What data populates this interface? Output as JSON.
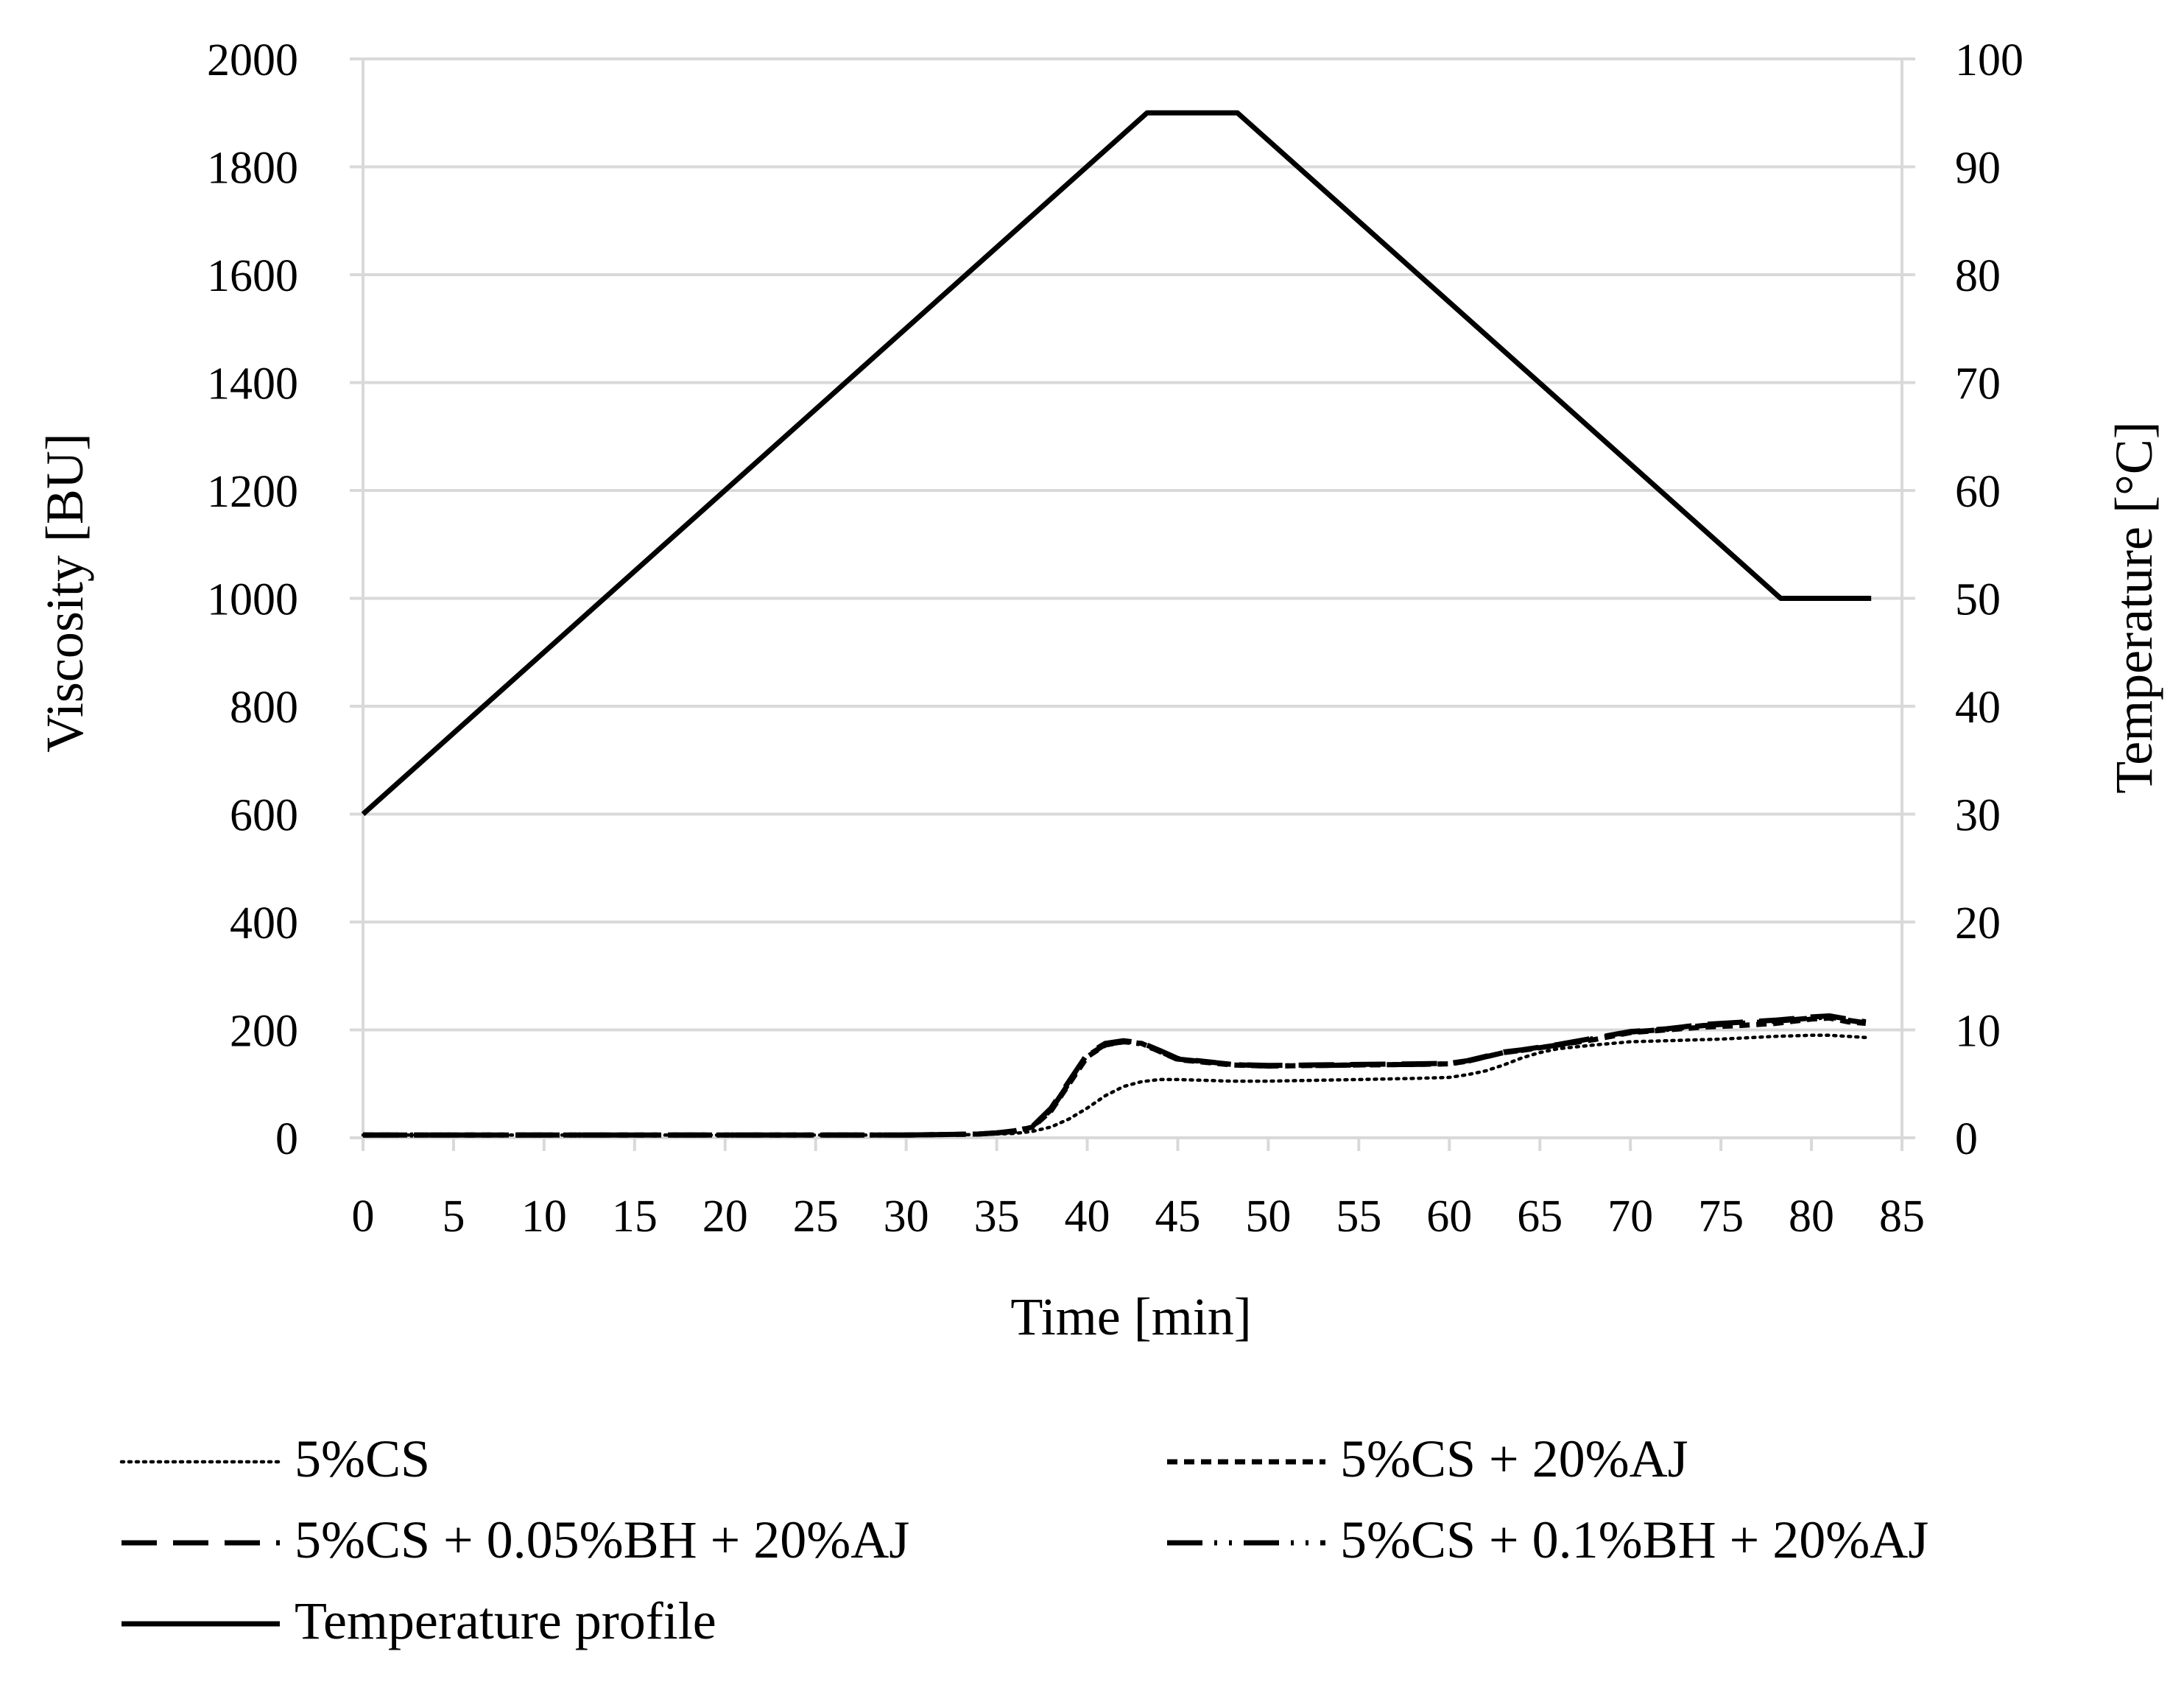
{
  "chart_data": {
    "type": "line",
    "title": "",
    "xlabel": "Time [min]",
    "ylabel": "Viscosity [BU]",
    "y2label": "Temperature [°C]",
    "xlim": [
      0,
      85
    ],
    "ylim": [
      0,
      2000
    ],
    "y2lim": [
      0,
      100
    ],
    "x_ticks": [
      "0",
      "5",
      "10",
      "15",
      "20",
      "25",
      "30",
      "35",
      "40",
      "45",
      "50",
      "55",
      "60",
      "65",
      "70",
      "75",
      "80",
      "85"
    ],
    "y_ticks": [
      "0",
      "200",
      "400",
      "600",
      "800",
      "1000",
      "1200",
      "1400",
      "1600",
      "1800",
      "2000"
    ],
    "y2_ticks": [
      "0",
      "10",
      "20",
      "30",
      "40",
      "50",
      "60",
      "70",
      "80",
      "90",
      "100"
    ],
    "grid": true,
    "legend_position": "bottom",
    "series": [
      {
        "name": "5%CS",
        "axis": "left",
        "style": "dotted",
        "x": [
          0,
          10,
          20,
          30,
          34,
          36,
          37,
          38,
          39,
          40,
          41,
          42,
          43,
          44,
          45,
          48,
          50,
          55,
          58,
          60,
          61,
          62,
          63,
          64,
          65,
          66,
          68,
          70,
          72,
          75,
          78,
          80,
          81,
          82,
          83
        ],
        "values": [
          5,
          5,
          5,
          5,
          6,
          8,
          12,
          20,
          35,
          55,
          78,
          95,
          104,
          108,
          108,
          105,
          105,
          108,
          110,
          112,
          117,
          124,
          135,
          148,
          158,
          165,
          172,
          178,
          180,
          183,
          188,
          190,
          190,
          188,
          186
        ]
      },
      {
        "name": "5%CS + 20%AJ",
        "axis": "left",
        "style": "short-dash",
        "x": [
          0,
          10,
          20,
          30,
          34,
          35,
          36,
          37,
          38,
          39,
          40,
          41,
          42,
          43,
          44,
          45,
          48,
          50,
          55,
          58,
          60,
          61,
          62,
          63,
          64,
          66,
          68,
          70,
          72,
          74,
          76,
          78,
          80,
          81,
          82,
          83
        ],
        "values": [
          5,
          5,
          5,
          5,
          7,
          9,
          12,
          20,
          50,
          100,
          150,
          172,
          178,
          175,
          160,
          145,
          135,
          133,
          135,
          136,
          137,
          142,
          150,
          158,
          162,
          172,
          182,
          195,
          200,
          205,
          208,
          212,
          220,
          222,
          215,
          212
        ]
      },
      {
        "name": "5%CS + 0.05%BH + 20%AJ",
        "axis": "left",
        "style": "long-dash",
        "x": [
          0,
          10,
          20,
          30,
          34,
          35,
          36,
          37,
          38,
          39,
          40,
          41,
          42,
          43,
          44,
          45,
          48,
          50,
          55,
          58,
          60,
          61,
          62,
          63,
          64,
          66,
          68,
          70,
          72,
          74,
          76,
          78,
          80,
          81,
          82,
          83
        ],
        "values": [
          5,
          5,
          5,
          5,
          7,
          9,
          13,
          22,
          55,
          105,
          155,
          175,
          180,
          176,
          162,
          147,
          136,
          134,
          136,
          137,
          138,
          143,
          151,
          159,
          163,
          173,
          185,
          197,
          202,
          210,
          214,
          218,
          224,
          226,
          220,
          215
        ]
      },
      {
        "name": "5%CS + 0.1%BH + 20%AJ",
        "axis": "left",
        "style": "dash-dot",
        "x": [
          0,
          10,
          20,
          30,
          34,
          35,
          36,
          37,
          38,
          39,
          40,
          41,
          42,
          43,
          44,
          45,
          48,
          50,
          55,
          58,
          60,
          61,
          62,
          63,
          64,
          66,
          68,
          70,
          72,
          74,
          76,
          78,
          80,
          81,
          82,
          83
        ],
        "values": [
          5,
          5,
          5,
          5,
          7,
          9,
          12,
          21,
          52,
          102,
          152,
          173,
          178,
          174,
          160,
          146,
          136,
          133,
          135,
          136,
          137,
          142,
          150,
          158,
          162,
          172,
          184,
          196,
          201,
          208,
          212,
          216,
          222,
          224,
          218,
          213
        ]
      },
      {
        "name": "Temperature profile",
        "axis": "right",
        "style": "solid",
        "x": [
          0,
          43.3,
          48.3,
          78.3,
          83.3
        ],
        "values": [
          30,
          95,
          95,
          50,
          50
        ]
      }
    ]
  }
}
